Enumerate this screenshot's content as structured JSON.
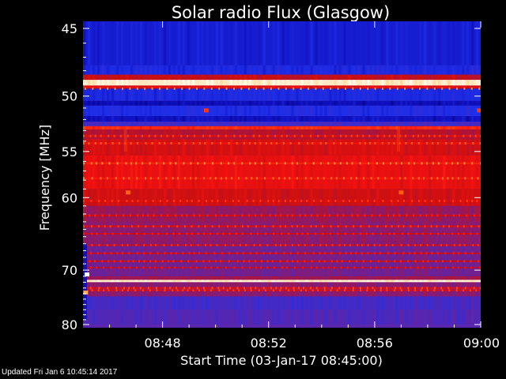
{
  "chart_data": {
    "type": "heatmap",
    "title": "Solar radio Flux (Glasgow)",
    "xlabel": "Start Time (03-Jan-17 08:45:00)",
    "ylabel": "Frequency [MHz]",
    "x_ticks": [
      "08:48",
      "08:52",
      "08:56",
      "09:00"
    ],
    "x_tick_minutes": [
      3,
      7,
      11,
      15
    ],
    "x_range_minutes": [
      0,
      15
    ],
    "y_ticks": [
      45,
      50,
      55,
      60,
      70,
      80
    ],
    "y_range": [
      45,
      80
    ],
    "y_scale": "reciprocal",
    "colormap": [
      "#000066",
      "#1010c0",
      "#2030e8",
      "#5028b8",
      "#8a1a70",
      "#c81010",
      "#ff1010",
      "#ff6010",
      "#ffd080",
      "#ffffff"
    ],
    "bands": [
      {
        "f0": 44.0,
        "f1": 47.6,
        "level": 0.16
      },
      {
        "f0": 47.6,
        "f1": 48.3,
        "level": 0.2
      },
      {
        "f0": 48.3,
        "f1": 48.7,
        "level": 0.55
      },
      {
        "f0": 48.7,
        "f1": 49.15,
        "level": 0.95
      },
      {
        "f0": 49.15,
        "f1": 49.4,
        "level": 0.6
      },
      {
        "f0": 49.4,
        "f1": 50.4,
        "level": 0.2
      },
      {
        "f0": 50.4,
        "f1": 50.8,
        "level": 0.1
      },
      {
        "f0": 50.8,
        "f1": 51.7,
        "level": 0.22
      },
      {
        "f0": 51.7,
        "f1": 52.2,
        "level": 0.12
      },
      {
        "f0": 52.2,
        "f1": 52.6,
        "level": 0.3
      },
      {
        "f0": 52.6,
        "f1": 52.9,
        "level": 0.7
      },
      {
        "f0": 52.9,
        "f1": 53.8,
        "level": 0.52
      },
      {
        "f0": 53.8,
        "f1": 55.4,
        "level": 0.58
      },
      {
        "f0": 55.4,
        "f1": 59.0,
        "level": 0.62
      },
      {
        "f0": 59.0,
        "f1": 61.0,
        "level": 0.57
      },
      {
        "f0": 61.0,
        "f1": 63.0,
        "level": 0.47
      },
      {
        "f0": 63.0,
        "f1": 66.0,
        "level": 0.45
      },
      {
        "f0": 66.0,
        "f1": 71.0,
        "level": 0.4
      },
      {
        "f0": 71.0,
        "f1": 71.6,
        "level": 0.48
      },
      {
        "f0": 71.6,
        "f1": 72.0,
        "level": 0.95
      },
      {
        "f0": 72.0,
        "f1": 74.5,
        "level": 0.44
      },
      {
        "f0": 74.5,
        "f1": 77.0,
        "level": 0.3
      },
      {
        "f0": 77.0,
        "f1": 80.0,
        "level": 0.33
      }
    ],
    "lines": [
      {
        "f": 53.5,
        "level": 0.62
      },
      {
        "f": 54.2,
        "level": 0.66
      },
      {
        "f": 56.2,
        "level": 0.7
      },
      {
        "f": 57.8,
        "level": 0.68
      },
      {
        "f": 60.4,
        "level": 0.6
      },
      {
        "f": 62.2,
        "level": 0.56
      },
      {
        "f": 63.6,
        "level": 0.6
      },
      {
        "f": 64.6,
        "level": 0.55
      },
      {
        "f": 66.2,
        "level": 0.58
      },
      {
        "f": 67.4,
        "level": 0.54
      },
      {
        "f": 68.6,
        "level": 0.56
      },
      {
        "f": 69.6,
        "level": 0.52
      },
      {
        "f": 73.0,
        "level": 0.62
      },
      {
        "f": 73.4,
        "level": 0.6
      }
    ],
    "spots": [
      {
        "t": 4.65,
        "f": 51.2,
        "level": 0.72
      },
      {
        "t": 14.95,
        "f": 51.2,
        "level": 0.72
      },
      {
        "t": 1.7,
        "f": 59.4,
        "level": 0.78
      },
      {
        "t": 12.0,
        "f": 59.4,
        "level": 0.78
      },
      {
        "t": 0.15,
        "f": 70.7,
        "level": 1.0
      },
      {
        "t": 0.1,
        "f": 73.8,
        "level": 0.85
      }
    ],
    "grid": false
  },
  "footer": {
    "updated": "Updated Fri Jan  6 10:45:14 2017"
  }
}
